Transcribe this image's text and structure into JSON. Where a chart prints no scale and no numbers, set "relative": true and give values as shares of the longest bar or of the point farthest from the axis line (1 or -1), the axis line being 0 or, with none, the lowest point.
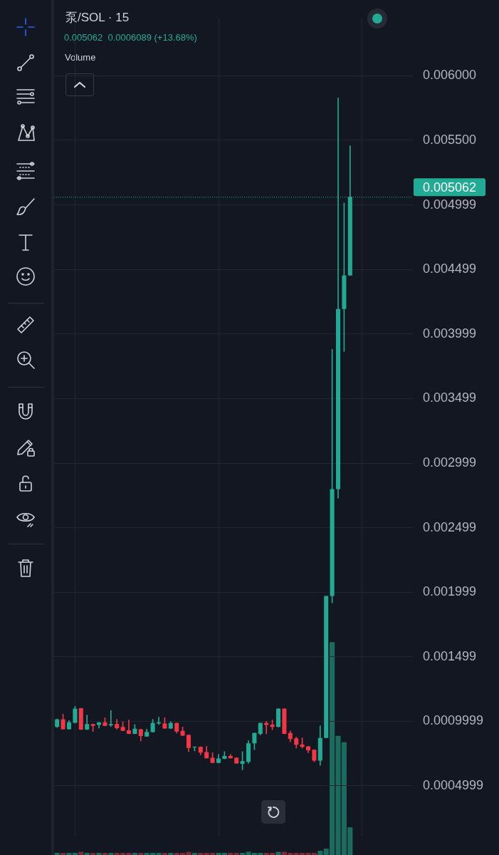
{
  "chart_data": [
    {
      "type": "candlestick",
      "title": "泵/SOL · 15",
      "subtitle": "0.005062  0.0006089 (+13.68%)",
      "categories": [
        null,
        null,
        null,
        null,
        null,
        null,
        null,
        null,
        null,
        null,
        null,
        null,
        null,
        null,
        null,
        null,
        null,
        null,
        null,
        null,
        null,
        null,
        null,
        null,
        null,
        null,
        null,
        null,
        null,
        null,
        null,
        null,
        null,
        null,
        null,
        null,
        null,
        null,
        null,
        null,
        null,
        null,
        null,
        null,
        null,
        null,
        null,
        null,
        null,
        null,
        null,
        null,
        null,
        null,
        null,
        null,
        null,
        null,
        null,
        null
      ],
      "ohlc": [
        [
          0.000955,
          0.001017,
          0.000952,
          0.001014
        ],
        [
          0.001014,
          0.001053,
          0.000938,
          0.000938
        ],
        [
          0.000938,
          0.001005,
          0.000938,
          0.000991
        ],
        [
          0.000987,
          0.001115,
          0.000987,
          0.001097
        ],
        [
          0.0011,
          0.0011,
          0.000934,
          0.000934
        ],
        [
          0.000934,
          0.001047,
          0.000934,
          0.000978
        ],
        [
          0.000978,
          0.000978,
          0.00092,
          0.000964
        ],
        [
          0.00097,
          0.000991,
          0.000946,
          0.000991
        ],
        [
          0.000991,
          0.001026,
          0.000964,
          0.000964
        ],
        [
          0.000968,
          0.001083,
          0.000959,
          0.000977
        ],
        [
          0.000978,
          0.001014,
          0.000938,
          0.000946
        ],
        [
          0.000955,
          0.000996,
          0.000925,
          0.000925
        ],
        [
          0.000929,
          0.001009,
          0.000902,
          0.000902
        ],
        [
          0.000902,
          0.000973,
          0.000902,
          0.000941
        ],
        [
          0.000938,
          0.000938,
          0.000846,
          0.000885
        ],
        [
          0.000881,
          0.000938,
          0.000881,
          0.000917
        ],
        [
          0.000915,
          0.001014,
          0.000915,
          0.000986
        ],
        [
          0.000982,
          0.001031,
          0.000973,
          0.000991
        ],
        [
          0.000982,
          0.001026,
          0.000943,
          0.000943
        ],
        [
          0.000943,
          0.000996,
          0.000943,
          0.000986
        ],
        [
          0.000986,
          0.000986,
          0.000908,
          0.00092
        ],
        [
          0.000925,
          0.000955,
          0.000888,
          0.000888
        ],
        [
          0.000893,
          0.000893,
          0.000764,
          0.000792
        ],
        [
          0.000796,
          0.000801,
          0.00077,
          0.000801
        ],
        [
          0.000801,
          0.000801,
          0.000739,
          0.000757
        ],
        [
          0.000761,
          0.000805,
          0.000713,
          0.000713
        ],
        [
          0.000717,
          0.000755,
          0.000676,
          0.000676
        ],
        [
          0.000676,
          0.000743,
          0.000676,
          0.000711
        ],
        [
          0.000708,
          0.000764,
          0.000708,
          0.000731
        ],
        [
          0.000731,
          0.000743,
          0.000713,
          0.000713
        ],
        [
          0.000717,
          0.000717,
          0.000673,
          0.000673
        ],
        [
          0.000669,
          0.000764,
          0.000623,
          0.00069
        ],
        [
          0.000685,
          0.000849,
          0.000673,
          0.000828
        ],
        [
          0.000828,
          0.000908,
          0.000779,
          0.000908
        ],
        [
          0.000902,
          0.000986,
          0.000893,
          0.000986
        ],
        [
          0.000986,
          0.000999,
          0.000902,
          0.00097
        ],
        [
          0.000973,
          0.001009,
          0.000933,
          0.000955
        ],
        [
          0.000955,
          0.001097,
          0.000955,
          0.001097
        ],
        [
          0.001097,
          0.001097,
          0.000902,
          0.000902
        ],
        [
          0.000908,
          0.000925,
          0.00084,
          0.000861
        ],
        [
          0.000867,
          0.000876,
          0.000792,
          0.000817
        ],
        [
          0.000819,
          0.00087,
          0.000792,
          0.000801
        ],
        [
          0.000805,
          0.000805,
          0.000755,
          0.000773
        ],
        [
          0.000779,
          0.000779,
          0.000685,
          0.000695
        ],
        [
          0.000695,
          0.000964,
          0.000658,
          0.00087
        ],
        [
          0.00087,
          0.001969,
          0.00087,
          0.001969
        ],
        [
          0.001969,
          0.00388,
          0.001916,
          0.002797
        ],
        [
          0.002797,
          0.005828,
          0.002728,
          0.004193
        ],
        [
          0.004193,
          0.005016,
          0.003864,
          0.004453
        ],
        [
          0.004453,
          0.005457,
          0.004453,
          0.005062
        ],
        null,
        null,
        null,
        null,
        null,
        null,
        null,
        null,
        null,
        null
      ],
      "colors": [
        "#22ab94",
        "#f23645",
        "#22ab94",
        "#22ab94",
        "#f23645",
        "#22ab94",
        "#f23645",
        "#22ab94",
        "#f23645",
        "#22ab94",
        "#f23645",
        "#f23645",
        "#f23645",
        "#22ab94",
        "#f23645",
        "#22ab94",
        "#22ab94",
        "#22ab94",
        "#f23645",
        "#22ab94",
        "#f23645",
        "#f23645",
        "#f23645",
        "#22ab94",
        "#f23645",
        "#f23645",
        "#f23645",
        "#22ab94",
        "#22ab94",
        "#f23645",
        "#f23645",
        "#22ab94",
        "#22ab94",
        "#22ab94",
        "#22ab94",
        "#f23645",
        "#f23645",
        "#22ab94",
        "#f23645",
        "#f23645",
        "#f23645",
        "#f23645",
        "#f23645",
        "#f23645",
        "#22ab94",
        "#22ab94",
        "#22ab94",
        "#22ab94",
        "#22ab94",
        "#22ab94",
        null,
        null,
        null,
        null,
        null,
        null,
        null,
        null,
        null,
        null
      ],
      "ylim": [
        0.0001,
        0.00645
      ],
      "yticks": [
        0.0004999,
        0.0009999,
        0.001499,
        0.001999,
        0.002499,
        0.002999,
        0.003499,
        0.003999,
        0.004499,
        0.004999,
        {
          "value": 0.0055,
          "label": "0.005500"
        },
        {
          "value": 0.006,
          "label": "0.006000"
        }
      ],
      "ref_lines": [
        {
          "axis": "y",
          "value": 0.005062,
          "label": "0.005062",
          "color": "#22ab94",
          "line_style": "dotted"
        }
      ],
      "grid": true,
      "tick_labels": "y"
    },
    {
      "type": "bar",
      "title": "Volume",
      "relative": true,
      "categories": [
        null,
        null,
        null,
        null,
        null,
        null,
        null,
        null,
        null,
        null,
        null,
        null,
        null,
        null,
        null,
        null,
        null,
        null,
        null,
        null,
        null,
        null,
        null,
        null,
        null,
        null,
        null,
        null,
        null,
        null,
        null,
        null,
        null,
        null,
        null,
        null,
        null,
        null,
        null,
        null,
        null,
        null,
        null,
        null,
        null,
        null,
        null,
        null,
        null,
        null,
        null,
        null,
        null,
        null,
        null,
        null,
        null,
        null,
        null,
        null
      ],
      "values": [
        0.01,
        0.01,
        0.01,
        0.01,
        0.015,
        0.01,
        0.01,
        0.01,
        0.01,
        0.01,
        0.01,
        0.01,
        0.01,
        0.01,
        0.01,
        0.01,
        0.01,
        0.01,
        0.01,
        0.01,
        0.01,
        0.01,
        0.015,
        0.01,
        0.01,
        0.01,
        0.01,
        0.01,
        0.01,
        0.01,
        0.01,
        0.01,
        0.015,
        0.01,
        0.01,
        0.01,
        0.01,
        0.015,
        0.015,
        0.01,
        0.01,
        0.01,
        0.01,
        0.01,
        0.02,
        0.03,
        1,
        0.56,
        0.53,
        0.13,
        null,
        null,
        null,
        null,
        null,
        null,
        null,
        null,
        null,
        null
      ],
      "colors": [
        "#1c6b5f",
        "#7a2b35",
        "#1c6b5f",
        "#1c6b5f",
        "#7a2b35",
        "#1c6b5f",
        "#7a2b35",
        "#1c6b5f",
        "#7a2b35",
        "#1c6b5f",
        "#7a2b35",
        "#7a2b35",
        "#7a2b35",
        "#1c6b5f",
        "#7a2b35",
        "#1c6b5f",
        "#1c6b5f",
        "#1c6b5f",
        "#7a2b35",
        "#1c6b5f",
        "#7a2b35",
        "#7a2b35",
        "#7a2b35",
        "#1c6b5f",
        "#7a2b35",
        "#7a2b35",
        "#7a2b35",
        "#1c6b5f",
        "#1c6b5f",
        "#7a2b35",
        "#7a2b35",
        "#1c6b5f",
        "#1c6b5f",
        "#1c6b5f",
        "#1c6b5f",
        "#7a2b35",
        "#7a2b35",
        "#1c6b5f",
        "#7a2b35",
        "#7a2b35",
        "#7a2b35",
        "#7a2b35",
        "#7a2b35",
        "#7a2b35",
        "#1c6b5f",
        "#1c6b5f",
        "#1c6b5f",
        "#1c6b5f",
        "#1c6b5f",
        "#1c6b5f",
        null,
        null,
        null,
        null,
        null,
        null,
        null,
        null,
        null,
        null
      ],
      "tick_labels": false
    }
  ]
}
